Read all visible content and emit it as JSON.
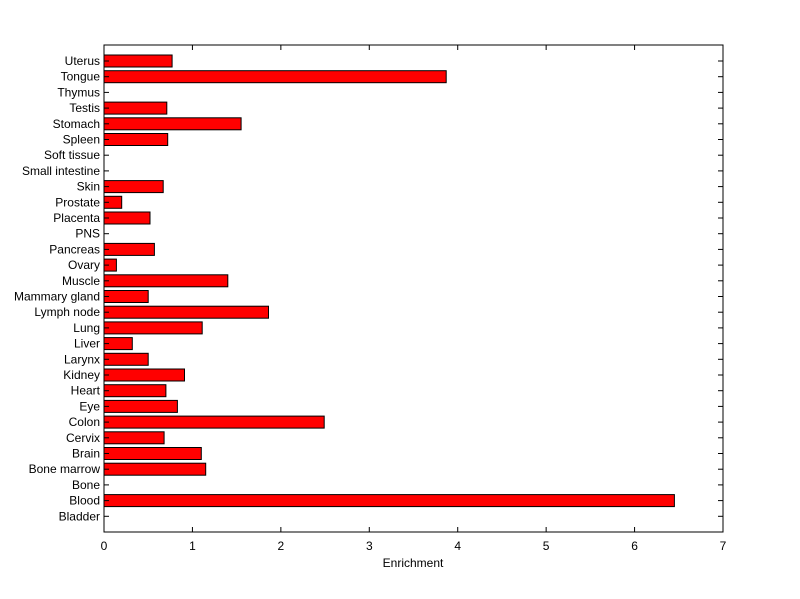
{
  "chart_data": {
    "type": "bar",
    "orientation": "horizontal",
    "title": "",
    "xlabel": "Enrichment",
    "ylabel": "",
    "xlim": [
      0,
      7
    ],
    "xticks": [
      0,
      1,
      2,
      3,
      4,
      5,
      6,
      7
    ],
    "grid": false,
    "bar_color": "#ff0000",
    "bar_edge_color": "#000000",
    "categories": [
      "Uterus",
      "Tongue",
      "Thymus",
      "Testis",
      "Stomach",
      "Spleen",
      "Soft tissue",
      "Small intestine",
      "Skin",
      "Prostate",
      "Placenta",
      "PNS",
      "Pancreas",
      "Ovary",
      "Muscle",
      "Mammary gland",
      "Lymph node",
      "Lung",
      "Liver",
      "Larynx",
      "Kidney",
      "Heart",
      "Eye",
      "Colon",
      "Cervix",
      "Brain",
      "Bone marrow",
      "Bone",
      "Blood",
      "Bladder"
    ],
    "values": [
      0.77,
      3.87,
      0,
      0.71,
      1.55,
      0.72,
      0,
      0,
      0.67,
      0.2,
      0.52,
      0,
      0.57,
      0.14,
      1.4,
      0.5,
      1.86,
      1.11,
      0.32,
      0.5,
      0.91,
      0.7,
      0.83,
      2.49,
      0.68,
      1.1,
      1.15,
      0,
      6.45,
      0
    ]
  }
}
